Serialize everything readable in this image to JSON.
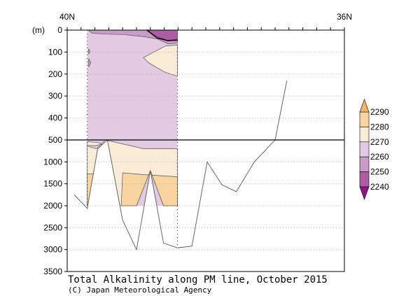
{
  "chart_data": {
    "type": "heatmap",
    "title": "Total Alkalinity along PM line, October 2015",
    "credit": "(C) Japan Meteorological Agency",
    "y_unit_label": "(m)",
    "x_corner_labels": {
      "left": "40N",
      "right": "36N"
    },
    "x_axis": {
      "from_lat": 40,
      "to_lat": 36
    },
    "y_axis": {
      "upper_segment": {
        "range": [
          0,
          500
        ],
        "ticks": [
          0,
          100,
          200,
          300,
          400,
          500
        ]
      },
      "lower_segment": {
        "range": [
          500,
          3500
        ],
        "ticks": [
          1000,
          1500,
          2000,
          2500,
          3000,
          3500
        ]
      },
      "break_at_m": 500
    },
    "colorbar": {
      "levels": [
        2240,
        2250,
        2260,
        2270,
        2280,
        2290
      ],
      "colors": [
        "#8b1a7e",
        "#ad5da4",
        "#c99cc6",
        "#e2cbe2",
        "#fbecd7",
        "#f8d4a1",
        "#f1b66c"
      ]
    },
    "bottom_profile": [
      {
        "lat": 39.9,
        "depth": 1750
      },
      {
        "lat": 39.71,
        "depth": 2060
      },
      {
        "lat": 39.56,
        "depth": 700
      },
      {
        "lat": 39.42,
        "depth": 500
      },
      {
        "lat": 39.2,
        "depth": 2330
      },
      {
        "lat": 39.0,
        "depth": 3000
      },
      {
        "lat": 38.8,
        "depth": 1200
      },
      {
        "lat": 38.61,
        "depth": 2850
      },
      {
        "lat": 38.41,
        "depth": 2960
      },
      {
        "lat": 38.2,
        "depth": 2920
      },
      {
        "lat": 37.98,
        "depth": 1000
      },
      {
        "lat": 37.77,
        "depth": 1520
      },
      {
        "lat": 37.56,
        "depth": 1680
      },
      {
        "lat": 37.3,
        "depth": 1000
      },
      {
        "lat": 37.0,
        "depth": 500
      },
      {
        "lat": 36.83,
        "depth": 230
      }
    ],
    "section": {
      "lat_range": [
        39.71,
        38.41
      ],
      "max_depth": 2000,
      "regions": [
        {
          "level_class": 3,
          "points": [
            [
              39.71,
              0
            ],
            [
              38.41,
              0
            ],
            [
              38.41,
              2000
            ],
            [
              39.71,
              2000
            ]
          ]
        },
        {
          "level_class": 4,
          "points": [
            [
              39.45,
              500
            ],
            [
              39.58,
              700
            ],
            [
              39.71,
              640
            ],
            [
              39.71,
              2000
            ],
            [
              39.21,
              2000
            ],
            [
              39.2,
              2000
            ],
            [
              39.0,
              2000
            ],
            [
              38.8,
              1200
            ],
            [
              38.61,
              2000
            ],
            [
              38.41,
              2000
            ],
            [
              38.41,
              700
            ],
            [
              38.9,
              700
            ]
          ]
        },
        {
          "level_class": 5,
          "points": [
            [
              39.71,
              1270
            ],
            [
              39.58,
              1280
            ],
            [
              39.45,
              1690
            ],
            [
              39.3,
              2000
            ],
            [
              39.71,
              2000
            ]
          ]
        },
        {
          "level_class": 5,
          "points": [
            [
              39.2,
              1250
            ],
            [
              38.9,
              1290
            ],
            [
              38.41,
              1340
            ],
            [
              38.41,
              2000
            ],
            [
              38.61,
              2000
            ],
            [
              38.8,
              1200
            ],
            [
              39.0,
              2000
            ],
            [
              39.22,
              2000
            ]
          ]
        },
        {
          "level_class": 4,
          "points": [
            [
              38.41,
              68
            ],
            [
              38.58,
              72
            ],
            [
              38.82,
              112
            ],
            [
              38.9,
              125
            ],
            [
              38.82,
              150
            ],
            [
              38.6,
              190
            ],
            [
              38.41,
              210
            ]
          ]
        },
        {
          "level_class": 2,
          "points": [
            [
              39.7,
              0
            ],
            [
              38.41,
              0
            ],
            [
              38.41,
              60
            ],
            [
              38.55,
              62
            ],
            [
              38.7,
              40
            ],
            [
              38.9,
              30
            ],
            [
              39.2,
              20
            ],
            [
              39.45,
              18
            ],
            [
              39.64,
              14
            ],
            [
              39.7,
              0
            ]
          ]
        },
        {
          "level_class": 1,
          "points": [
            [
              38.85,
              0
            ],
            [
              38.41,
              0
            ],
            [
              38.41,
              48
            ],
            [
              38.55,
              48
            ],
            [
              38.72,
              28
            ],
            [
              38.85,
              0
            ]
          ]
        },
        {
          "level_class": 4,
          "points": [
            [
              39.71,
              540
            ],
            [
              39.55,
              560
            ],
            [
              39.5,
              600
            ],
            [
              39.6,
              630
            ],
            [
              39.71,
              625
            ]
          ]
        },
        {
          "level_class": 2,
          "points": [
            [
              39.69,
              130
            ],
            [
              39.66,
              148
            ],
            [
              39.69,
              168
            ]
          ]
        },
        {
          "level_class": 2,
          "points": [
            [
              39.69,
              85
            ],
            [
              39.67,
              100
            ],
            [
              39.69,
              108
            ]
          ]
        }
      ]
    }
  }
}
